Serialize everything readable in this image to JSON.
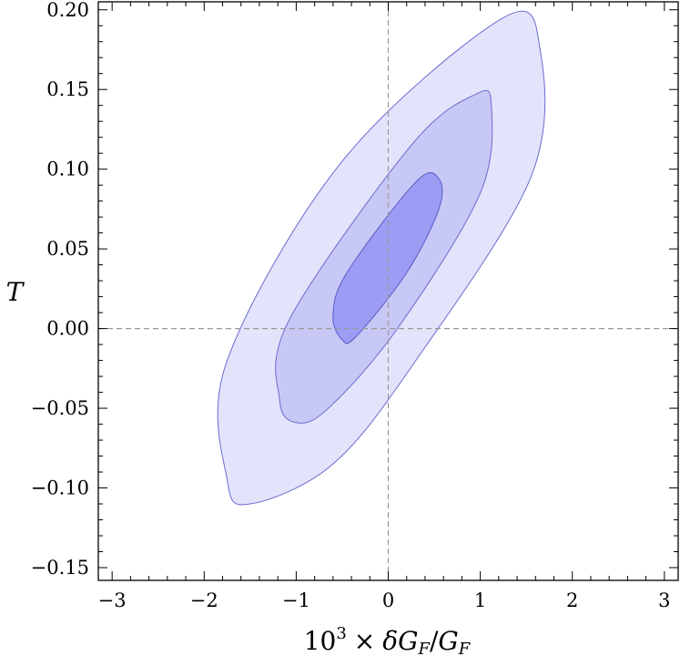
{
  "chart_data": {
    "type": "contour",
    "title": "",
    "xlabel": {
      "prefix": "10",
      "exponent": "3",
      "times": "×",
      "delta": "δ",
      "numerator": "G",
      "numerator_sub": "F",
      "slash": "/",
      "denominator": "G",
      "denominator_sub": "F"
    },
    "ylabel": "T",
    "xlim": [
      -3.15,
      3.15
    ],
    "ylim": [
      -0.158,
      0.205
    ],
    "x_ticks": [
      {
        "value": -3,
        "label": "−3"
      },
      {
        "value": -2,
        "label": "−2"
      },
      {
        "value": -1,
        "label": "−1"
      },
      {
        "value": 0,
        "label": "0"
      },
      {
        "value": 1,
        "label": "1"
      },
      {
        "value": 2,
        "label": "2"
      },
      {
        "value": 3,
        "label": "3"
      }
    ],
    "y_ticks": [
      {
        "value": 0.2,
        "label": "0.20"
      },
      {
        "value": 0.15,
        "label": "0.15"
      },
      {
        "value": 0.1,
        "label": "0.10"
      },
      {
        "value": 0.05,
        "label": "0.05"
      },
      {
        "value": 0.0,
        "label": "0.00"
      },
      {
        "value": -0.05,
        "label": "−0.05"
      },
      {
        "value": -0.1,
        "label": "−0.10"
      },
      {
        "value": -0.15,
        "label": "−0.15"
      }
    ],
    "x_minor_step": 0.2,
    "y_minor_step": 0.01,
    "reference_lines": {
      "x": 0,
      "y": 0,
      "style": "dashed",
      "color": "#999999"
    },
    "center": {
      "x": 0.0,
      "y": 0.043
    },
    "contours": [
      {
        "level": 3,
        "fill": "#e3e3fb",
        "stroke": "#6b6bd0",
        "points": [
          [
            -1.5,
            -0.11
          ],
          [
            -1.75,
            -0.095
          ],
          [
            -1.75,
            -0.02
          ],
          [
            -0.5,
            0.105
          ],
          [
            1.25,
            0.195
          ],
          [
            1.65,
            0.175
          ],
          [
            1.55,
            0.095
          ],
          [
            0.3,
            -0.02
          ],
          [
            -0.6,
            -0.085
          ]
        ]
      },
      {
        "level": 2,
        "fill": "#c8c8f6",
        "stroke": "#6b6bd0",
        "points": [
          [
            -1.0,
            -0.059
          ],
          [
            -1.18,
            -0.045
          ],
          [
            -1.08,
            0.005
          ],
          [
            0.25,
            0.115
          ],
          [
            0.95,
            0.147
          ],
          [
            1.12,
            0.14
          ],
          [
            1.0,
            0.085
          ],
          [
            0.1,
            0.0
          ],
          [
            -0.65,
            -0.05
          ]
        ]
      },
      {
        "level": 1,
        "fill": "#9c9cf5",
        "stroke": "#5a5ac8",
        "points": [
          [
            -0.5,
            -0.007
          ],
          [
            -0.6,
            0.008
          ],
          [
            -0.45,
            0.035
          ],
          [
            0.3,
            0.092
          ],
          [
            0.55,
            0.094
          ],
          [
            0.55,
            0.075
          ],
          [
            0.2,
            0.035
          ],
          [
            -0.35,
            -0.005
          ]
        ]
      }
    ]
  }
}
